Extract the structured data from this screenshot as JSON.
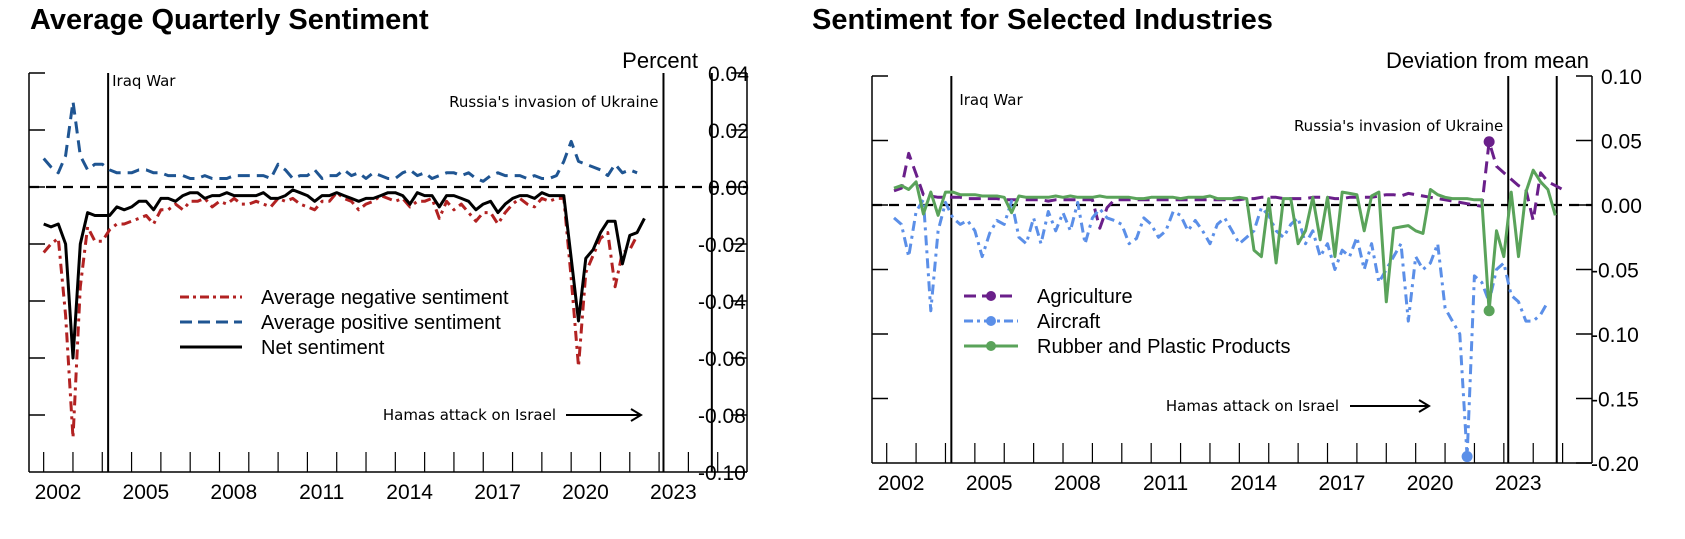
{
  "chart_data": [
    {
      "type": "line",
      "title": "Average Quarterly Sentiment",
      "ylabel": "Percent",
      "xlabel": "",
      "ylim": [
        -0.1,
        0.04
      ],
      "yticks": [
        "0.04",
        "0.02",
        "0.00",
        "-0.02",
        "-0.04",
        "-0.06",
        "-0.08",
        "-0.10"
      ],
      "ytick_values": [
        0.04,
        0.02,
        0.0,
        -0.02,
        -0.04,
        -0.06,
        -0.08,
        -0.1
      ],
      "xlim": [
        2000.5,
        2025.0
      ],
      "xticks": [
        "2002",
        "2005",
        "2008",
        "2011",
        "2014",
        "2017",
        "2020",
        "2023"
      ],
      "xtick_values": [
        2002,
        2005,
        2008,
        2011,
        2014,
        2017,
        2020,
        2023
      ],
      "zero_line": true,
      "legend_position": "center-left",
      "events": [
        {
          "label": "Iraq War",
          "x": 2003.2
        },
        {
          "label": "Russia's invasion of Ukraine",
          "x": 2022.15
        },
        {
          "label": "Hamas attack on Israel",
          "x": 2023.8
        }
      ],
      "x_start": 2001.0,
      "x_step": 0.25,
      "series": [
        {
          "name": "Average negative sentiment",
          "color": "#b22222",
          "dash": "dashdot",
          "values": [
            -0.023,
            -0.02,
            -0.018,
            -0.045,
            -0.088,
            -0.035,
            -0.014,
            -0.019,
            -0.019,
            -0.015,
            -0.013,
            -0.013,
            -0.012,
            -0.011,
            -0.01,
            -0.013,
            -0.008,
            -0.008,
            -0.006,
            -0.008,
            -0.005,
            -0.005,
            -0.004,
            -0.007,
            -0.005,
            -0.006,
            -0.004,
            -0.006,
            -0.006,
            -0.005,
            -0.006,
            -0.007,
            -0.004,
            -0.005,
            -0.004,
            -0.006,
            -0.007,
            -0.008,
            -0.005,
            -0.005,
            -0.002,
            -0.004,
            -0.005,
            -0.008,
            -0.006,
            -0.005,
            -0.003,
            -0.004,
            -0.005,
            -0.004,
            -0.007,
            -0.005,
            -0.005,
            -0.004,
            -0.011,
            -0.005,
            -0.008,
            -0.006,
            -0.009,
            -0.012,
            -0.009,
            -0.009,
            -0.013,
            -0.009,
            -0.006,
            -0.004,
            -0.006,
            -0.007,
            -0.004,
            -0.005,
            -0.004,
            -0.004,
            -0.032,
            -0.063,
            -0.03,
            -0.024,
            -0.018,
            -0.016,
            -0.035,
            -0.023,
            -0.022,
            -0.017
          ]
        },
        {
          "name": "Average positive sentiment",
          "color": "#1f5592",
          "dash": "dashed",
          "values": [
            0.01,
            0.007,
            0.005,
            0.011,
            0.03,
            0.011,
            0.006,
            0.008,
            0.008,
            0.006,
            0.005,
            0.005,
            0.005,
            0.006,
            0.006,
            0.005,
            0.005,
            0.004,
            0.004,
            0.004,
            0.003,
            0.003,
            0.004,
            0.003,
            0.003,
            0.003,
            0.004,
            0.004,
            0.004,
            0.004,
            0.004,
            0.003,
            0.008,
            0.006,
            0.003,
            0.004,
            0.004,
            0.006,
            0.003,
            0.004,
            0.004,
            0.006,
            0.004,
            0.005,
            0.003,
            0.005,
            0.004,
            0.003,
            0.003,
            0.005,
            0.006,
            0.004,
            0.005,
            0.003,
            0.004,
            0.005,
            0.005,
            0.004,
            0.005,
            0.003,
            0.002,
            0.004,
            0.005,
            0.004,
            0.004,
            0.004,
            0.003,
            0.004,
            0.003,
            0.003,
            0.004,
            0.009,
            0.016,
            0.009,
            0.008,
            0.007,
            0.006,
            0.004,
            0.008,
            0.005,
            0.006,
            0.005
          ]
        },
        {
          "name": "Net sentiment",
          "color": "#000000",
          "dash": "solid",
          "values": [
            -0.013,
            -0.014,
            -0.013,
            -0.02,
            -0.06,
            -0.02,
            -0.009,
            -0.01,
            -0.01,
            -0.01,
            -0.007,
            -0.008,
            -0.007,
            -0.005,
            -0.005,
            -0.008,
            -0.004,
            -0.004,
            -0.005,
            -0.003,
            -0.002,
            -0.002,
            -0.004,
            -0.003,
            -0.003,
            -0.002,
            -0.003,
            -0.003,
            -0.003,
            -0.003,
            -0.002,
            -0.004,
            -0.004,
            -0.003,
            -0.001,
            -0.002,
            -0.003,
            -0.005,
            -0.003,
            -0.003,
            -0.002,
            -0.003,
            -0.004,
            -0.005,
            -0.004,
            -0.004,
            -0.003,
            -0.002,
            -0.002,
            -0.003,
            -0.006,
            -0.002,
            -0.003,
            -0.003,
            -0.007,
            -0.003,
            -0.003,
            -0.004,
            -0.005,
            -0.008,
            -0.006,
            -0.005,
            -0.009,
            -0.006,
            -0.004,
            -0.003,
            -0.003,
            -0.004,
            -0.002,
            -0.003,
            -0.003,
            -0.003,
            -0.025,
            -0.047,
            -0.025,
            -0.022,
            -0.016,
            -0.012,
            -0.012,
            -0.027,
            -0.017,
            -0.016,
            -0.011
          ]
        }
      ]
    },
    {
      "type": "line",
      "title": "Sentiment for Selected Industries",
      "ylabel": "Deviation from mean",
      "xlabel": "",
      "ylim": [
        -0.2,
        0.1
      ],
      "yticks": [
        "0.10",
        "0.05",
        "0.00",
        "-0.05",
        "-0.10",
        "-0.15",
        "-0.20"
      ],
      "ytick_values": [
        0.1,
        0.05,
        0.0,
        -0.05,
        -0.1,
        -0.15,
        -0.2
      ],
      "xlim": [
        2000.5,
        2025.0
      ],
      "xticks": [
        "2002",
        "2005",
        "2008",
        "2011",
        "2014",
        "2017",
        "2020",
        "2023"
      ],
      "xtick_values": [
        2002,
        2005,
        2008,
        2011,
        2014,
        2017,
        2020,
        2023
      ],
      "zero_line": true,
      "legend_position": "center",
      "events": [
        {
          "label": "Iraq War",
          "x": 2003.2
        },
        {
          "label": "Russia's invasion of Ukraine",
          "x": 2022.15
        },
        {
          "label": "Hamas attack on Israel",
          "x": 2023.8
        }
      ],
      "x_start": 2001.25,
      "x_step": 0.25,
      "series": [
        {
          "name": "Agriculture",
          "color": "#6a1f8a",
          "dash": "dashed-marker",
          "values": [
            0.011,
            0.013,
            0.04,
            0.024,
            0.008,
            0.007,
            0.006,
            0.006,
            0.006,
            0.006,
            0.005,
            0.005,
            0.005,
            0.005,
            0.005,
            0.004,
            0.004,
            0.004,
            0.004,
            0.004,
            0.004,
            0.003,
            0.004,
            0.004,
            0.004,
            0.004,
            0.004,
            0.004,
            -0.018,
            -0.002,
            0.004,
            0.004,
            0.004,
            0.004,
            0.004,
            0.004,
            0.004,
            0.004,
            0.004,
            0.004,
            0.004,
            0.004,
            0.004,
            0.004,
            0.004,
            0.004,
            0.004,
            0.004,
            0.005,
            0.005,
            0.006,
            0.006,
            0.006,
            0.005,
            0.005,
            0.005,
            0.005,
            0.006,
            0.006,
            0.006,
            0.005,
            0.005,
            0.006,
            0.006,
            0.006,
            0.006,
            0.007,
            0.008,
            0.008,
            0.007,
            0.009,
            0.008,
            0.007,
            0.006,
            0.005,
            0.004,
            0.003,
            0.002,
            0.001,
            0.0,
            -0.001,
            0.049,
            0.03,
            0.025,
            0.02,
            0.015,
            0.012,
            -0.012,
            0.025,
            0.018,
            0.015,
            0.012
          ],
          "markers": [
            {
              "x_index": 81,
              "value": 0.049
            }
          ]
        },
        {
          "name": "Aircraft",
          "color": "#5b8fe8",
          "dash": "dashdot-marker",
          "values": [
            -0.01,
            -0.015,
            -0.04,
            -0.005,
            0.004,
            -0.082,
            -0.02,
            0.002,
            -0.01,
            -0.015,
            -0.012,
            -0.02,
            -0.04,
            -0.022,
            -0.012,
            -0.015,
            0.003,
            -0.025,
            -0.03,
            -0.01,
            -0.03,
            -0.005,
            -0.02,
            -0.006,
            -0.02,
            0.002,
            -0.03,
            -0.01,
            -0.003,
            -0.01,
            -0.012,
            -0.015,
            -0.03,
            -0.026,
            -0.01,
            -0.015,
            -0.025,
            -0.02,
            -0.005,
            -0.008,
            -0.02,
            -0.012,
            -0.02,
            -0.03,
            -0.015,
            -0.01,
            -0.02,
            -0.03,
            -0.025,
            -0.02,
            -0.002,
            -0.008,
            -0.02,
            -0.025,
            -0.015,
            -0.01,
            -0.03,
            -0.02,
            -0.04,
            -0.03,
            -0.05,
            -0.035,
            -0.04,
            -0.025,
            -0.05,
            -0.03,
            -0.06,
            -0.05,
            -0.04,
            -0.03,
            -0.09,
            -0.04,
            -0.05,
            -0.045,
            -0.03,
            -0.08,
            -0.09,
            -0.1,
            -0.195,
            -0.055,
            -0.06,
            -0.075,
            -0.05,
            -0.045,
            -0.07,
            -0.075,
            -0.09,
            -0.09,
            -0.085,
            -0.075
          ],
          "markers": [
            {
              "x_index": 78,
              "value": -0.195
            }
          ]
        },
        {
          "name": "Rubber and Plastic Products",
          "color": "#5aa35a",
          "dash": "solid-marker",
          "values": [
            0.013,
            0.015,
            0.012,
            0.018,
            -0.007,
            0.01,
            -0.008,
            0.01,
            0.01,
            0.008,
            0.008,
            0.008,
            0.007,
            0.007,
            0.007,
            0.006,
            -0.006,
            0.007,
            0.006,
            0.006,
            0.006,
            0.006,
            0.007,
            0.006,
            0.007,
            0.006,
            0.006,
            0.006,
            0.007,
            0.006,
            0.006,
            0.006,
            0.006,
            0.005,
            0.005,
            0.006,
            0.006,
            0.006,
            0.006,
            0.005,
            0.006,
            0.006,
            0.006,
            0.007,
            0.005,
            0.005,
            0.005,
            0.006,
            0.005,
            -0.035,
            -0.04,
            0.005,
            -0.045,
            0.005,
            0.005,
            -0.03,
            -0.02,
            0.006,
            -0.027,
            0.006,
            -0.04,
            0.01,
            0.009,
            0.008,
            -0.02,
            0.007,
            0.01,
            -0.075,
            -0.018,
            -0.017,
            -0.016,
            -0.02,
            -0.022,
            0.012,
            0.008,
            0.006,
            0.005,
            0.005,
            0.005,
            0.004,
            0.004,
            -0.082,
            -0.02,
            -0.04,
            0.01,
            -0.04,
            0.01,
            0.027,
            0.018,
            0.012,
            -0.008
          ],
          "markers": [
            {
              "x_index": 81,
              "value": -0.082
            }
          ]
        }
      ]
    }
  ]
}
